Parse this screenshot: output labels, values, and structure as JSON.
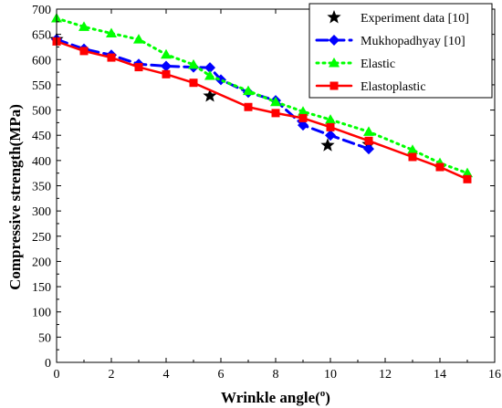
{
  "chart_data": {
    "type": "line",
    "xlabel": "Wrinkle angle(o)",
    "ylabel": "Compressive strength(MPa)",
    "xlim": [
      0,
      16
    ],
    "ylim": [
      0,
      700
    ],
    "xticks": [
      0,
      2,
      4,
      6,
      8,
      10,
      12,
      14,
      16
    ],
    "yticks": [
      0,
      50,
      100,
      150,
      200,
      250,
      300,
      350,
      400,
      450,
      500,
      550,
      600,
      650,
      700
    ],
    "legend_position": "top-right",
    "series": [
      {
        "name": "Experiment data [10]",
        "style": "points",
        "marker": "star",
        "color": "#000000",
        "x": [
          0,
          5.6,
          9.9,
          11.4
        ],
        "y": [
          640,
          528,
          430,
          432
        ]
      },
      {
        "name": "Mukhopadhyay [10]",
        "style": "dash",
        "marker": "diamond",
        "color": "#0000ff",
        "x": [
          0,
          1,
          2,
          3,
          4,
          5,
          5.6,
          6,
          7,
          8,
          9,
          10,
          11.4
        ],
        "y": [
          640,
          621,
          609,
          591,
          587,
          585,
          584,
          560,
          535,
          519,
          470,
          450,
          423
        ]
      },
      {
        "name": "Elastic",
        "style": "dot",
        "marker": "triangle",
        "color": "#00ff00",
        "x": [
          0,
          1,
          2,
          3,
          4,
          5,
          5.6,
          7,
          8,
          9,
          10,
          11.4,
          13,
          14,
          15
        ],
        "y": [
          682,
          665,
          652,
          640,
          610,
          590,
          568,
          538,
          516,
          497,
          481,
          457,
          421,
          395,
          375
        ]
      },
      {
        "name": "Elastoplastic",
        "style": "solid",
        "marker": "square",
        "color": "#ff0000",
        "x": [
          0,
          1,
          2,
          3,
          4,
          5,
          7,
          8,
          9,
          10,
          11.4,
          13,
          14,
          15
        ],
        "y": [
          636,
          617,
          604,
          585,
          571,
          554,
          506,
          494,
          484,
          466,
          439,
          407,
          387,
          363
        ]
      }
    ]
  }
}
